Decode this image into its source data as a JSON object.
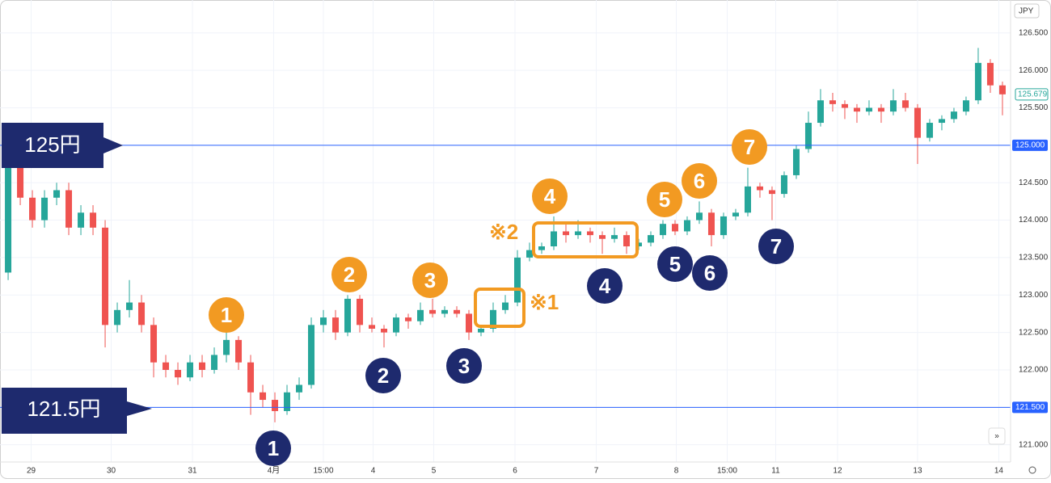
{
  "chart_data": {
    "type": "candlestick",
    "currency": "JPY",
    "up_color": "#26a69a",
    "down_color": "#ef5350",
    "grid": true,
    "xlim": [
      -0.67,
      82.67
    ],
    "ylim": [
      120.77,
      126.94
    ],
    "yticks": [
      {
        "value": 121,
        "label": "121.000"
      },
      {
        "value": 121.5,
        "label": "121.500"
      },
      {
        "value": 122,
        "label": "122.000"
      },
      {
        "value": 122.5,
        "label": "122.500"
      },
      {
        "value": 123,
        "label": "123.000"
      },
      {
        "value": 123.5,
        "label": "123.500"
      },
      {
        "value": 124,
        "label": "124.000"
      },
      {
        "value": 124.5,
        "label": "124.500"
      },
      {
        "value": 125,
        "label": "125.000"
      },
      {
        "value": 125.5,
        "label": "125.500"
      },
      {
        "value": 126,
        "label": "126.000"
      },
      {
        "value": 126.5,
        "label": "126.500"
      }
    ],
    "xticks": [
      {
        "value": 1.9,
        "label": "29"
      },
      {
        "value": 8.5,
        "label": "30"
      },
      {
        "value": 15.2,
        "label": "31"
      },
      {
        "value": 21.9,
        "label": "4月"
      },
      {
        "value": 26,
        "label": "15:00"
      },
      {
        "value": 30.1,
        "label": "4"
      },
      {
        "value": 35.1,
        "label": "5"
      },
      {
        "value": 41.8,
        "label": "6"
      },
      {
        "value": 48.5,
        "label": "7"
      },
      {
        "value": 55.1,
        "label": "8"
      },
      {
        "value": 59.3,
        "label": "15:00"
      },
      {
        "value": 63.3,
        "label": "11"
      },
      {
        "value": 68.4,
        "label": "12"
      },
      {
        "value": 75,
        "label": "13"
      },
      {
        "value": 81.7,
        "label": "14"
      }
    ],
    "ohlc": [
      [
        123.3,
        124.9,
        123.2,
        124.8
      ],
      [
        124.8,
        124.9,
        124.2,
        124.3
      ],
      [
        124.3,
        124.4,
        123.9,
        124.0
      ],
      [
        124.0,
        124.4,
        123.9,
        124.3
      ],
      [
        124.3,
        124.5,
        124.2,
        124.4
      ],
      [
        124.4,
        124.5,
        123.8,
        123.9
      ],
      [
        123.9,
        124.2,
        123.8,
        124.1
      ],
      [
        124.1,
        124.2,
        123.8,
        123.9
      ],
      [
        123.9,
        124.0,
        122.3,
        122.6
      ],
      [
        122.6,
        122.9,
        122.5,
        122.8
      ],
      [
        122.8,
        123.2,
        122.7,
        122.9
      ],
      [
        122.9,
        123.0,
        122.5,
        122.6
      ],
      [
        122.6,
        122.7,
        121.9,
        122.1
      ],
      [
        122.1,
        122.2,
        121.9,
        122.0
      ],
      [
        122.0,
        122.1,
        121.8,
        121.9
      ],
      [
        121.9,
        122.2,
        121.85,
        122.1
      ],
      [
        122.1,
        122.2,
        121.9,
        122.0
      ],
      [
        122.0,
        122.3,
        121.95,
        122.2
      ],
      [
        122.2,
        122.5,
        122.1,
        122.4
      ],
      [
        122.4,
        122.45,
        122.0,
        122.1
      ],
      [
        122.1,
        122.2,
        121.4,
        121.7
      ],
      [
        121.7,
        121.8,
        121.5,
        121.6
      ],
      [
        121.6,
        121.7,
        121.3,
        121.45
      ],
      [
        121.45,
        121.8,
        121.4,
        121.7
      ],
      [
        121.7,
        121.9,
        121.6,
        121.8
      ],
      [
        121.8,
        122.7,
        121.75,
        122.6
      ],
      [
        122.6,
        122.8,
        122.5,
        122.7
      ],
      [
        122.7,
        122.8,
        122.4,
        122.5
      ],
      [
        122.5,
        123.0,
        122.45,
        122.95
      ],
      [
        122.95,
        123.0,
        122.5,
        122.6
      ],
      [
        122.6,
        122.7,
        122.5,
        122.55
      ],
      [
        122.55,
        122.6,
        122.3,
        122.5
      ],
      [
        122.5,
        122.75,
        122.45,
        122.7
      ],
      [
        122.7,
        122.75,
        122.55,
        122.65
      ],
      [
        122.65,
        122.9,
        122.6,
        122.8
      ],
      [
        122.8,
        122.95,
        122.7,
        122.75
      ],
      [
        122.75,
        122.85,
        122.7,
        122.8
      ],
      [
        122.8,
        122.85,
        122.7,
        122.75
      ],
      [
        122.75,
        122.8,
        122.4,
        122.5
      ],
      [
        122.5,
        122.6,
        122.45,
        122.55
      ],
      [
        122.55,
        122.9,
        122.5,
        122.8
      ],
      [
        122.8,
        123.0,
        122.75,
        122.9
      ],
      [
        122.9,
        123.6,
        122.85,
        123.5
      ],
      [
        123.5,
        123.7,
        123.45,
        123.6
      ],
      [
        123.6,
        123.7,
        123.55,
        123.65
      ],
      [
        123.65,
        124.05,
        123.6,
        123.85
      ],
      [
        123.85,
        123.95,
        123.7,
        123.8
      ],
      [
        123.8,
        124.0,
        123.75,
        123.85
      ],
      [
        123.85,
        123.9,
        123.7,
        123.8
      ],
      [
        123.8,
        123.85,
        123.55,
        123.75
      ],
      [
        123.75,
        123.9,
        123.7,
        123.8
      ],
      [
        123.8,
        123.85,
        123.55,
        123.65
      ],
      [
        123.65,
        123.75,
        123.6,
        123.7
      ],
      [
        123.7,
        123.85,
        123.65,
        123.8
      ],
      [
        123.8,
        124.0,
        123.75,
        123.95
      ],
      [
        123.95,
        124.0,
        123.8,
        123.85
      ],
      [
        123.85,
        124.05,
        123.8,
        124.0
      ],
      [
        124.0,
        124.25,
        123.95,
        124.1
      ],
      [
        124.1,
        124.15,
        123.65,
        123.8
      ],
      [
        123.8,
        124.1,
        123.75,
        124.05
      ],
      [
        124.05,
        124.15,
        124.0,
        124.1
      ],
      [
        124.1,
        124.7,
        124.05,
        124.45
      ],
      [
        124.45,
        124.5,
        124.3,
        124.4
      ],
      [
        124.4,
        124.45,
        124.0,
        124.35
      ],
      [
        124.35,
        124.65,
        124.3,
        124.6
      ],
      [
        124.6,
        125.0,
        124.55,
        124.95
      ],
      [
        124.95,
        125.45,
        124.9,
        125.3
      ],
      [
        125.3,
        125.75,
        125.25,
        125.6
      ],
      [
        125.6,
        125.7,
        125.45,
        125.55
      ],
      [
        125.55,
        125.6,
        125.35,
        125.5
      ],
      [
        125.5,
        125.55,
        125.3,
        125.45
      ],
      [
        125.45,
        125.6,
        125.4,
        125.5
      ],
      [
        125.5,
        125.55,
        125.3,
        125.45
      ],
      [
        125.45,
        125.75,
        125.4,
        125.6
      ],
      [
        125.6,
        125.7,
        125.45,
        125.5
      ],
      [
        125.5,
        125.55,
        124.75,
        125.1
      ],
      [
        125.1,
        125.35,
        125.05,
        125.3
      ],
      [
        125.3,
        125.4,
        125.2,
        125.35
      ],
      [
        125.35,
        125.5,
        125.3,
        125.45
      ],
      [
        125.45,
        125.65,
        125.4,
        125.6
      ],
      [
        125.6,
        126.3,
        125.55,
        126.1
      ],
      [
        126.1,
        126.15,
        125.7,
        125.8
      ],
      [
        125.8,
        125.85,
        125.4,
        125.68
      ]
    ],
    "hlines": {
      "color": "#2962ff",
      "values": [
        125,
        121.5
      ],
      "value_labels": [
        "125.000",
        "121.500"
      ]
    },
    "last_price": {
      "value": 125.679,
      "label": "125.679"
    },
    "annotations": {
      "callouts": [
        "125円",
        "121.5円"
      ],
      "orange": [
        "1",
        "2",
        "3",
        "4",
        "5",
        "6",
        "7"
      ],
      "navy": [
        "1",
        "2",
        "3",
        "4",
        "5",
        "6",
        "7"
      ],
      "notes": [
        "※1",
        "※2"
      ]
    }
  }
}
